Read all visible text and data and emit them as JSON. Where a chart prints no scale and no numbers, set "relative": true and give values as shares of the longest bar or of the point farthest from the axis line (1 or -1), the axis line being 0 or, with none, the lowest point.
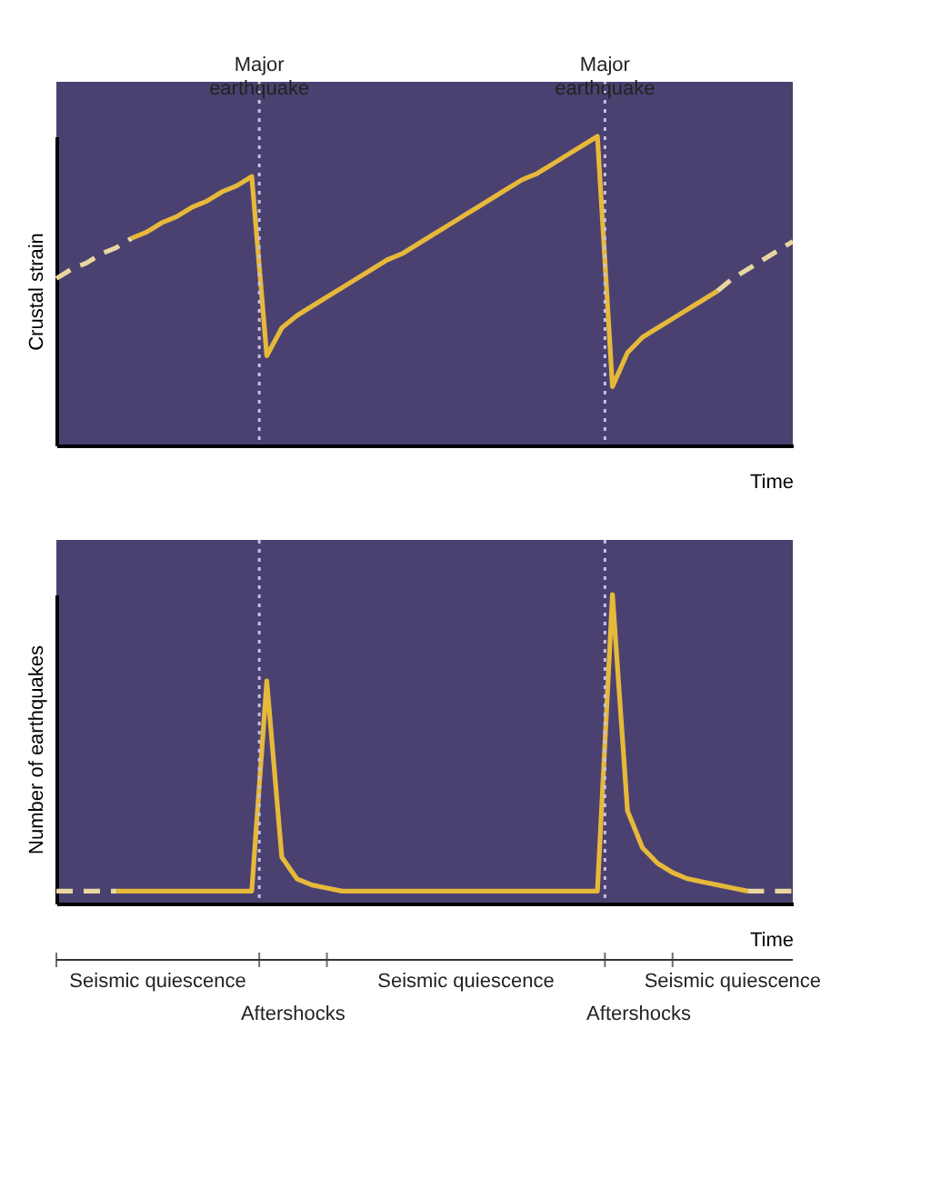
{
  "chart_data": [
    {
      "type": "line",
      "relative": true,
      "ylabel": "Crustal strain",
      "xlabel": "Time",
      "categories": [
        null,
        null,
        null,
        null,
        null,
        null,
        null,
        null,
        null,
        null,
        null,
        null,
        null,
        null,
        null,
        null,
        null,
        null,
        null,
        null,
        null,
        null,
        null,
        null,
        null,
        null,
        null,
        null,
        null,
        null,
        null,
        null,
        null,
        null,
        null,
        null,
        null,
        null,
        null,
        null,
        null,
        null,
        null,
        null,
        null,
        null,
        null,
        null,
        null,
        null
      ],
      "series": [
        {
          "color": "#e8d8a0",
          "line_style": "dashed",
          "values": [
            0.54,
            0.57,
            0.59,
            0.62,
            0.64,
            0.67,
            null,
            null,
            null,
            null,
            null,
            null,
            null,
            null,
            null,
            null,
            null,
            null,
            null,
            null,
            null,
            null,
            null,
            null,
            null,
            null,
            null,
            null,
            null,
            null,
            null,
            null,
            null,
            null,
            null,
            null,
            null,
            null,
            null,
            null,
            null,
            null,
            null,
            null,
            null,
            null,
            null,
            null,
            null,
            null
          ]
        },
        {
          "color": "#e6b93a",
          "line_style": "solid",
          "values": [
            null,
            null,
            null,
            null,
            null,
            0.67,
            0.69,
            0.72,
            0.74,
            0.77,
            0.79,
            0.82,
            0.84,
            0.87,
            0.29,
            0.38,
            0.42,
            0.45,
            0.48,
            0.51,
            0.54,
            0.57,
            0.6,
            0.62,
            0.65,
            0.68,
            0.71,
            0.74,
            0.77,
            0.8,
            0.83,
            0.86,
            0.88,
            0.91,
            0.94,
            0.97,
            1.0,
            0.19,
            0.3,
            0.35,
            0.38,
            0.41,
            0.44,
            0.47,
            0.5,
            null,
            null,
            null,
            null,
            null
          ]
        },
        {
          "color": "#e8d8a0",
          "line_style": "dashed",
          "values": [
            null,
            null,
            null,
            null,
            null,
            null,
            null,
            null,
            null,
            null,
            null,
            null,
            null,
            null,
            null,
            null,
            null,
            null,
            null,
            null,
            null,
            null,
            null,
            null,
            null,
            null,
            null,
            null,
            null,
            null,
            null,
            null,
            null,
            null,
            null,
            null,
            null,
            null,
            null,
            null,
            null,
            null,
            null,
            null,
            0.5,
            0.54,
            0.57,
            0.6,
            0.63,
            0.66
          ]
        }
      ],
      "annotations": [
        "Major earthquake",
        "Major earthquake"
      ]
    },
    {
      "type": "line",
      "relative": true,
      "ylabel": "Number of earthquakes",
      "xlabel": "Time",
      "categories": [
        null,
        null,
        null,
        null,
        null,
        null,
        null,
        null,
        null,
        null,
        null,
        null,
        null,
        null,
        null,
        null,
        null,
        null,
        null,
        null,
        null,
        null,
        null,
        null,
        null,
        null,
        null,
        null,
        null,
        null,
        null,
        null,
        null,
        null,
        null,
        null,
        null,
        null,
        null,
        null,
        null,
        null,
        null,
        null,
        null,
        null,
        null,
        null,
        null,
        null
      ],
      "series": [
        {
          "color": "#e8d8a0",
          "line_style": "dashed",
          "values": [
            0.04,
            0.04,
            0.04,
            0.04,
            0.04,
            null,
            null,
            null,
            null,
            null,
            null,
            null,
            null,
            null,
            null,
            null,
            null,
            null,
            null,
            null,
            null,
            null,
            null,
            null,
            null,
            null,
            null,
            null,
            null,
            null,
            null,
            null,
            null,
            null,
            null,
            null,
            null,
            null,
            null,
            null,
            null,
            null,
            null,
            null,
            null,
            null,
            null,
            null,
            null,
            null
          ]
        },
        {
          "color": "#e6b93a",
          "line_style": "solid",
          "values": [
            null,
            null,
            null,
            null,
            0.04,
            0.04,
            0.04,
            0.04,
            0.04,
            0.04,
            0.04,
            0.04,
            0.04,
            0.04,
            0.72,
            0.15,
            0.08,
            0.06,
            0.05,
            0.04,
            0.04,
            0.04,
            0.04,
            0.04,
            0.04,
            0.04,
            0.04,
            0.04,
            0.04,
            0.04,
            0.04,
            0.04,
            0.04,
            0.04,
            0.04,
            0.04,
            0.04,
            1.0,
            0.3,
            0.18,
            0.13,
            0.1,
            0.08,
            0.07,
            0.06,
            0.05,
            0.04,
            null,
            null,
            null
          ]
        },
        {
          "color": "#e8d8a0",
          "line_style": "dashed",
          "values": [
            null,
            null,
            null,
            null,
            null,
            null,
            null,
            null,
            null,
            null,
            null,
            null,
            null,
            null,
            null,
            null,
            null,
            null,
            null,
            null,
            null,
            null,
            null,
            null,
            null,
            null,
            null,
            null,
            null,
            null,
            null,
            null,
            null,
            null,
            null,
            null,
            null,
            null,
            null,
            null,
            null,
            null,
            null,
            null,
            null,
            null,
            0.04,
            0.04,
            0.04,
            0.04
          ]
        }
      ],
      "annotations": [
        "Seismic quiescence",
        "Aftershocks",
        "Seismic quiescence",
        "Aftershocks",
        "Seismic quiescence"
      ]
    }
  ]
}
